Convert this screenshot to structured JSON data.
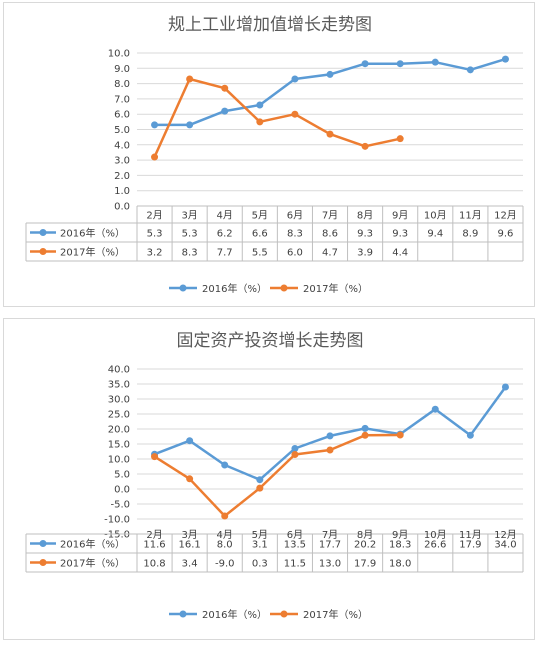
{
  "chart_data": [
    {
      "type": "line",
      "title": "规上工业增加值增长走势图",
      "categories": [
        "2月",
        "3月",
        "4月",
        "5月",
        "6月",
        "7月",
        "8月",
        "9月",
        "10月",
        "11月",
        "12月"
      ],
      "series": [
        {
          "name": "2016年（%）",
          "color": "#5b9bd5",
          "values": [
            5.3,
            5.3,
            6.2,
            6.6,
            8.3,
            8.6,
            9.3,
            9.3,
            9.4,
            8.9,
            9.6
          ],
          "labels": [
            "5.3",
            "5.3",
            "6.2",
            "6.6",
            "8.3",
            "8.6",
            "9.3",
            "9.3",
            "9.4",
            "8.9",
            "9.6"
          ]
        },
        {
          "name": "2017年（%）",
          "color": "#ed7d31",
          "values": [
            3.2,
            8.3,
            7.7,
            5.5,
            6.0,
            4.7,
            3.9,
            4.4,
            null,
            null,
            null
          ],
          "labels": [
            "3.2",
            "8.3",
            "7.7",
            "5.5",
            "6.0",
            "4.7",
            "3.9",
            "4.4",
            "",
            "",
            ""
          ]
        }
      ],
      "ylim": [
        0,
        10
      ],
      "yticks": [
        "0.0",
        "1.0",
        "2.0",
        "3.0",
        "4.0",
        "5.0",
        "6.0",
        "7.0",
        "8.0",
        "9.0",
        "10.0"
      ],
      "grid": true,
      "legend": "bottom",
      "data_table": true
    },
    {
      "type": "line",
      "title": "固定资产投资增长走势图",
      "categories": [
        "2月",
        "3月",
        "4月",
        "5月",
        "6月",
        "7月",
        "8月",
        "9月",
        "10月",
        "11月",
        "12月"
      ],
      "series": [
        {
          "name": "2016年（%）",
          "color": "#5b9bd5",
          "values": [
            11.6,
            16.1,
            8.0,
            3.1,
            13.5,
            17.7,
            20.2,
            18.3,
            26.6,
            17.9,
            34.0
          ],
          "labels": [
            "11.6",
            "16.1",
            "8.0",
            "3.1",
            "13.5",
            "17.7",
            "20.2",
            "18.3",
            "26.6",
            "17.9",
            "34.0"
          ]
        },
        {
          "name": "2017年（%）",
          "color": "#ed7d31",
          "values": [
            10.8,
            3.4,
            -9.0,
            0.3,
            11.5,
            13.0,
            17.9,
            18.0,
            null,
            null,
            null
          ],
          "labels": [
            "10.8",
            "3.4",
            "-9.0",
            "0.3",
            "11.5",
            "13.0",
            "17.9",
            "18.0",
            "",
            "",
            ""
          ]
        }
      ],
      "ylim": [
        -15,
        40
      ],
      "yticks": [
        "-15.0",
        "-10.0",
        "-5.0",
        "0.0",
        "5.0",
        "10.0",
        "15.0",
        "20.0",
        "25.0",
        "30.0",
        "35.0",
        "40.0"
      ],
      "grid": true,
      "legend": "bottom",
      "data_table": true
    }
  ]
}
